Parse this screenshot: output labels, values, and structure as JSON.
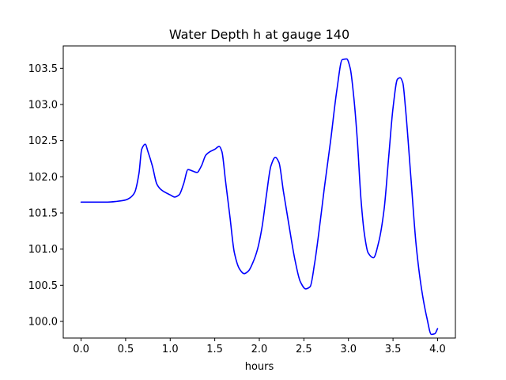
{
  "chart_data": {
    "type": "line",
    "title": "Water Depth h at gauge 140",
    "xlabel": "hours",
    "ylabel": "",
    "xlim": [
      -0.2,
      4.2
    ],
    "ylim": [
      99.77,
      103.81
    ],
    "xticks": [
      "0.0",
      "0.5",
      "1.0",
      "1.5",
      "2.0",
      "2.5",
      "3.0",
      "3.5",
      "4.0"
    ],
    "yticks": [
      "100.0",
      "100.5",
      "101.0",
      "101.5",
      "102.0",
      "102.5",
      "103.0",
      "103.5"
    ],
    "grid": false,
    "series": [
      {
        "color": "#0000ff",
        "x": [
          0.0,
          0.1,
          0.2,
          0.3,
          0.4,
          0.5,
          0.55,
          0.6,
          0.65,
          0.68,
          0.72,
          0.75,
          0.8,
          0.85,
          0.9,
          1.0,
          1.05,
          1.1,
          1.15,
          1.2,
          1.25,
          1.3,
          1.35,
          1.4,
          1.45,
          1.5,
          1.55,
          1.58,
          1.62,
          1.67,
          1.72,
          1.78,
          1.83,
          1.88,
          1.93,
          1.98,
          2.03,
          2.08,
          2.13,
          2.18,
          2.22,
          2.27,
          2.33,
          2.4,
          2.46,
          2.52,
          2.57,
          2.62,
          2.67,
          2.73,
          2.8,
          2.87,
          2.93,
          2.98,
          3.02,
          3.06,
          3.1,
          3.14,
          3.18,
          3.22,
          3.28,
          3.34,
          3.4,
          3.45,
          3.5,
          3.55,
          3.58,
          3.61,
          3.64,
          3.7,
          3.76,
          3.82,
          3.88,
          3.93,
          3.97,
          4.0
        ],
        "y": [
          101.65,
          101.65,
          101.65,
          101.65,
          101.66,
          101.68,
          101.71,
          101.78,
          102.05,
          102.38,
          102.45,
          102.35,
          102.15,
          101.9,
          101.82,
          101.75,
          101.72,
          101.75,
          101.9,
          102.1,
          102.08,
          102.06,
          102.15,
          102.3,
          102.35,
          102.38,
          102.42,
          102.35,
          101.95,
          101.45,
          100.95,
          100.72,
          100.66,
          100.7,
          100.82,
          101.0,
          101.3,
          101.75,
          102.15,
          102.27,
          102.2,
          101.8,
          101.35,
          100.85,
          100.55,
          100.45,
          100.48,
          100.8,
          101.25,
          101.85,
          102.5,
          103.2,
          103.62,
          103.63,
          103.5,
          103.1,
          102.5,
          101.7,
          101.2,
          100.95,
          100.88,
          101.1,
          101.55,
          102.25,
          102.95,
          103.35,
          103.37,
          103.3,
          102.95,
          102.0,
          101.05,
          100.45,
          100.05,
          99.82,
          99.83,
          99.9
        ]
      }
    ]
  }
}
